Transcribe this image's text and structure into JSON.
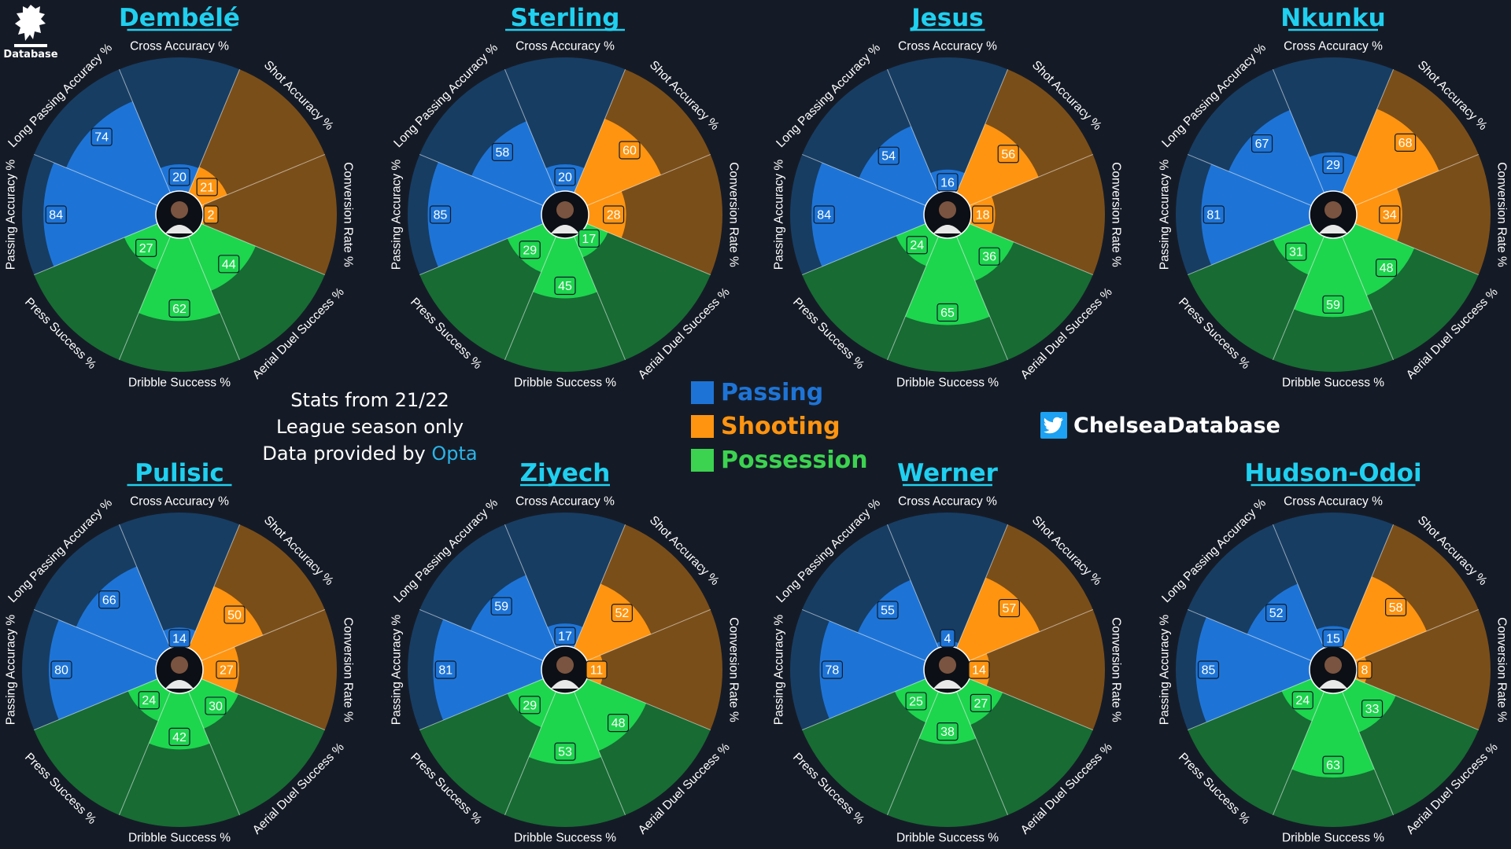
{
  "logo": {
    "text": "Database"
  },
  "info": {
    "line1": "Stats from 21/22",
    "line2": "League season only",
    "line3_prefix": "Data provided by ",
    "line3_source": "Opta"
  },
  "legend": [
    {
      "label": "Passing",
      "color": "#1e74d6"
    },
    {
      "label": "Shooting",
      "color": "#ff9410"
    },
    {
      "label": "Possession",
      "color": "#3cd350"
    }
  ],
  "social": {
    "handle": "ChelseaDatabase",
    "icon": "twitter-icon"
  },
  "colors": {
    "passing": "#1e74d6",
    "passing_bg": "#173d63",
    "shooting": "#ff9410",
    "shooting_bg": "#7a4e19",
    "possession": "#1ed54e",
    "possession_bg": "#176b33",
    "name": "#1fd0f0"
  },
  "chart_data": {
    "type": "polar-bar",
    "metrics": [
      {
        "label": "Passing Accuracy %",
        "group": "passing"
      },
      {
        "label": "Long Passing Accuracy %",
        "group": "passing"
      },
      {
        "label": "Cross Accuracy %",
        "group": "passing"
      },
      {
        "label": "Shot Accuracy %",
        "group": "shooting"
      },
      {
        "label": "Conversion Rate %",
        "group": "shooting"
      },
      {
        "label": "Aerial Duel Success %",
        "group": "possession"
      },
      {
        "label": "Dribble Success %",
        "group": "possession"
      },
      {
        "label": "Press Success %",
        "group": "possession"
      }
    ],
    "range": [
      0,
      100
    ],
    "players": [
      {
        "name": "Dembélé",
        "values": [
          84,
          74,
          20,
          21,
          2,
          44,
          62,
          27
        ]
      },
      {
        "name": "Sterling",
        "values": [
          85,
          58,
          20,
          60,
          28,
          17,
          45,
          29
        ]
      },
      {
        "name": "Jesus",
        "values": [
          84,
          54,
          16,
          56,
          18,
          36,
          65,
          24
        ]
      },
      {
        "name": "Nkunku",
        "values": [
          81,
          67,
          29,
          68,
          34,
          48,
          59,
          31
        ]
      },
      {
        "name": "Pulisic",
        "values": [
          80,
          66,
          14,
          50,
          27,
          30,
          42,
          24
        ]
      },
      {
        "name": "Ziyech",
        "values": [
          81,
          59,
          17,
          52,
          11,
          48,
          53,
          29
        ]
      },
      {
        "name": "Werner",
        "values": [
          78,
          55,
          4,
          57,
          14,
          27,
          38,
          25
        ]
      },
      {
        "name": "Hudson-Odoi",
        "values": [
          85,
          52,
          15,
          58,
          8,
          33,
          63,
          24
        ]
      }
    ]
  }
}
